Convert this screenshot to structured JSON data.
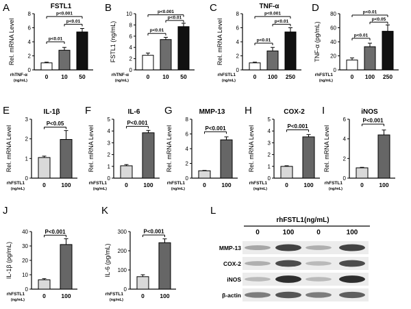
{
  "chart_data": [
    {
      "panel": "A",
      "type": "bar",
      "title": "FSTL1",
      "ylabel": "Rel. mRNA Level",
      "ylim": [
        0,
        8
      ],
      "yticks": [
        0,
        2,
        4,
        6,
        8
      ],
      "treatment": [
        "rhTNF-α",
        "(ng/mL)"
      ],
      "categories": [
        "0",
        "10",
        "50"
      ],
      "values": [
        1.0,
        2.8,
        5.4
      ],
      "errors": [
        0.1,
        0.4,
        0.5
      ],
      "bar_colors": [
        "#ffffff",
        "#6d6d6d",
        "#111111"
      ],
      "comparisons": [
        {
          "label": "p<0.01",
          "from": 0,
          "to": 1,
          "y": 4.0
        },
        {
          "label": "p<0.01",
          "from": 1,
          "to": 2,
          "y": 6.5
        },
        {
          "label": "p<0.001",
          "from": 0,
          "to": 2,
          "y": 7.6
        }
      ]
    },
    {
      "panel": "B",
      "type": "bar",
      "title": "",
      "ylabel": "FSTL1 (ng/mL)",
      "ylim": [
        0,
        10
      ],
      "yticks": [
        0,
        2,
        4,
        6,
        8,
        10
      ],
      "treatment": [
        "rhTNF-α",
        "(ng/mL)"
      ],
      "categories": [
        "0",
        "10",
        "50"
      ],
      "values": [
        2.6,
        5.4,
        7.7
      ],
      "errors": [
        0.4,
        0.4,
        0.6
      ],
      "bar_colors": [
        "#ffffff",
        "#6d6d6d",
        "#111111"
      ],
      "comparisons": [
        {
          "label": "p<0.01",
          "from": 0,
          "to": 1,
          "y": 6.5
        },
        {
          "label": "p<0.01",
          "from": 1,
          "to": 2,
          "y": 8.8
        },
        {
          "label": "p<0.001",
          "from": 0,
          "to": 2,
          "y": 9.8
        }
      ]
    },
    {
      "panel": "C",
      "type": "bar",
      "title": "TNF-α",
      "ylabel": "Rel. mRNA Level",
      "ylim": [
        0,
        8
      ],
      "yticks": [
        0,
        2,
        4,
        6,
        8
      ],
      "treatment": [
        "rhFSTL1",
        "(ng/mL)"
      ],
      "categories": [
        "0",
        "100",
        "250"
      ],
      "values": [
        1.0,
        2.7,
        5.4
      ],
      "errors": [
        0.1,
        0.5,
        0.6
      ],
      "bar_colors": [
        "#ffffff",
        "#6d6d6d",
        "#111111"
      ],
      "comparisons": [
        {
          "label": "p<0.01",
          "from": 0,
          "to": 1,
          "y": 3.8
        },
        {
          "label": "p<0.01",
          "from": 1,
          "to": 2,
          "y": 6.5
        },
        {
          "label": "p<0.001",
          "from": 0,
          "to": 2,
          "y": 7.6
        }
      ]
    },
    {
      "panel": "D",
      "type": "bar",
      "title": "",
      "ylabel": "TNF-α  (pg/mL)",
      "ylim": [
        0,
        80
      ],
      "yticks": [
        0,
        20,
        40,
        60,
        80
      ],
      "treatment": [
        "rhFSTL1",
        "(ng/mL)"
      ],
      "categories": [
        "0",
        "100",
        "250"
      ],
      "values": [
        14,
        33,
        55
      ],
      "errors": [
        3,
        5,
        9
      ],
      "bar_colors": [
        "#ffffff",
        "#6d6d6d",
        "#111111"
      ],
      "comparisons": [
        {
          "label": "p<0.01",
          "from": 0,
          "to": 1,
          "y": 45
        },
        {
          "label": "p<0.05",
          "from": 1,
          "to": 2,
          "y": 68
        },
        {
          "label": "p<0.01",
          "from": 0,
          "to": 2,
          "y": 78
        }
      ]
    },
    {
      "panel": "E",
      "type": "bar",
      "title": "IL-1β",
      "ylabel": "Rel. mRNA Level",
      "ylim": [
        0,
        3
      ],
      "yticks": [
        0,
        1,
        2,
        3
      ],
      "treatment": [
        "rhFSTL1",
        "(ng/mL)"
      ],
      "categories": [
        "0",
        "100"
      ],
      "values": [
        1.05,
        1.97
      ],
      "errors": [
        0.07,
        0.45
      ],
      "bar_colors": [
        "#d9d9d9",
        "#666666"
      ],
      "comparisons": [
        {
          "label": "P<0.05",
          "from": 0,
          "to": 1,
          "y": 2.6
        }
      ]
    },
    {
      "panel": "F",
      "type": "bar",
      "title": "IL-6",
      "ylabel": "Rel. mRNA Level",
      "ylim": [
        0,
        5
      ],
      "yticks": [
        0,
        1,
        2,
        3,
        4,
        5
      ],
      "treatment": [
        "rhFSTL1",
        "(ng/mL)"
      ],
      "categories": [
        "0",
        "100"
      ],
      "values": [
        1.05,
        3.85
      ],
      "errors": [
        0.1,
        0.2
      ],
      "bar_colors": [
        "#d9d9d9",
        "#666666"
      ],
      "comparisons": [
        {
          "label": "P<0.001",
          "from": 0,
          "to": 1,
          "y": 4.4
        }
      ]
    },
    {
      "panel": "G",
      "type": "bar",
      "title": "MMP-13",
      "ylabel": "Rel. mRNA Level",
      "ylim": [
        0,
        8
      ],
      "yticks": [
        0,
        2,
        4,
        6,
        8
      ],
      "treatment": [
        "rhFSTL1",
        "(ng/mL)"
      ],
      "categories": [
        "0",
        "100"
      ],
      "values": [
        1.0,
        5.2
      ],
      "errors": [
        0.05,
        0.4
      ],
      "bar_colors": [
        "#d9d9d9",
        "#666666"
      ],
      "comparisons": [
        {
          "label": "P<0.001",
          "from": 0,
          "to": 1,
          "y": 6.3
        }
      ]
    },
    {
      "panel": "H",
      "type": "bar",
      "title": "COX-2",
      "ylabel": "Rel. mRNA Level",
      "ylim": [
        0,
        5
      ],
      "yticks": [
        0,
        1,
        2,
        3,
        4,
        5
      ],
      "treatment": [
        "rhFSTL1",
        "(ng/mL)"
      ],
      "categories": [
        "0",
        "100"
      ],
      "values": [
        1.0,
        3.5
      ],
      "errors": [
        0.05,
        0.2
      ],
      "bar_colors": [
        "#d9d9d9",
        "#666666"
      ],
      "comparisons": [
        {
          "label": "P<0.001",
          "from": 0,
          "to": 1,
          "y": 4.1
        }
      ]
    },
    {
      "panel": "I",
      "type": "bar",
      "title": "iNOS",
      "ylabel": "Rel. mRNA Level",
      "ylim": [
        0,
        6
      ],
      "yticks": [
        0,
        2,
        4,
        6
      ],
      "treatment": [
        "rhFSTL1",
        "(ng/mL)"
      ],
      "categories": [
        "0",
        "100"
      ],
      "values": [
        1.05,
        4.4
      ],
      "errors": [
        0.05,
        0.5
      ],
      "bar_colors": [
        "#d9d9d9",
        "#666666"
      ],
      "comparisons": [
        {
          "label": "P<0.001",
          "from": 0,
          "to": 1,
          "y": 5.5
        }
      ]
    },
    {
      "panel": "J",
      "type": "bar",
      "title": "",
      "ylabel": "IL-1β  (pg/mL)",
      "ylim": [
        0,
        40
      ],
      "yticks": [
        0,
        10,
        20,
        30,
        40
      ],
      "treatment": [
        "rhFSTL1",
        "(ng/mL)"
      ],
      "categories": [
        "0",
        "100"
      ],
      "values": [
        6.5,
        31
      ],
      "errors": [
        0.8,
        4
      ],
      "bar_colors": [
        "#d9d9d9",
        "#666666"
      ],
      "comparisons": [
        {
          "label": "P<0.001",
          "from": 0,
          "to": 1,
          "y": 37.5
        }
      ]
    },
    {
      "panel": "K",
      "type": "bar",
      "title": "",
      "ylabel": "IL-6 (pg/mL)",
      "ylim": [
        0,
        300
      ],
      "yticks": [
        0,
        100,
        200,
        300
      ],
      "treatment": [
        "rhFSTL1",
        "(ng/mL)"
      ],
      "categories": [
        "0",
        "100"
      ],
      "values": [
        65,
        242
      ],
      "errors": [
        10,
        20
      ],
      "bar_colors": [
        "#d9d9d9",
        "#666666"
      ],
      "comparisons": [
        {
          "label": "P<0.001",
          "from": 0,
          "to": 1,
          "y": 282
        }
      ]
    }
  ],
  "panel_letters": [
    "A",
    "B",
    "C",
    "D",
    "E",
    "F",
    "G",
    "H",
    "I",
    "J",
    "K"
  ],
  "western_blot": {
    "panel": "L",
    "header": "rhFSTL1(ng/mL)",
    "concentrations": [
      "0",
      "100",
      "0",
      "100"
    ],
    "rows": [
      {
        "label": "MMP-13",
        "intensities": [
          0.35,
          0.85,
          0.3,
          0.85
        ]
      },
      {
        "label": "COX-2",
        "intensities": [
          0.3,
          0.8,
          0.25,
          0.8
        ]
      },
      {
        "label": "iNOS",
        "intensities": [
          0.25,
          0.95,
          0.25,
          0.95
        ]
      },
      {
        "label": "β-actin",
        "intensities": [
          0.55,
          0.75,
          0.55,
          0.7
        ]
      }
    ]
  }
}
